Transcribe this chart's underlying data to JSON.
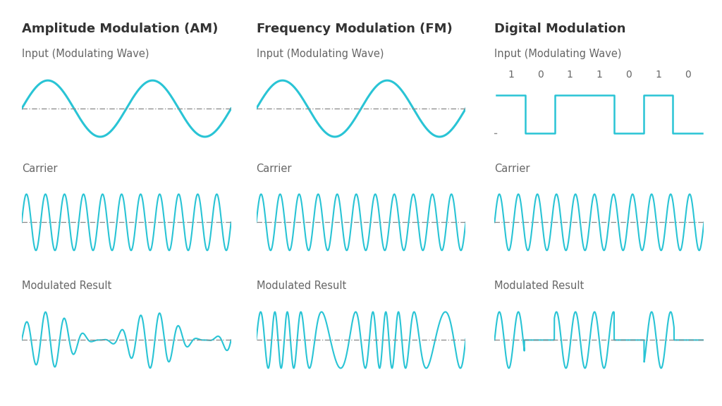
{
  "title_am": "Amplitude Modulation (AM)",
  "title_fm": "Frequency Modulation (FM)",
  "title_dm": "Digital Modulation",
  "label_input": "Input (Modulating Wave)",
  "label_carrier": "Carrier",
  "label_result": "Modulated Result",
  "wave_color": "#29C4D5",
  "dash_color": "#888888",
  "text_color": "#666666",
  "title_color": "#333333",
  "bg_color": "#ffffff",
  "digital_bits": [
    "1",
    "0",
    "1",
    "1",
    "0",
    "1",
    "0"
  ],
  "title_fontsize": 13,
  "label_fontsize": 10.5,
  "bits_fontsize": 10
}
